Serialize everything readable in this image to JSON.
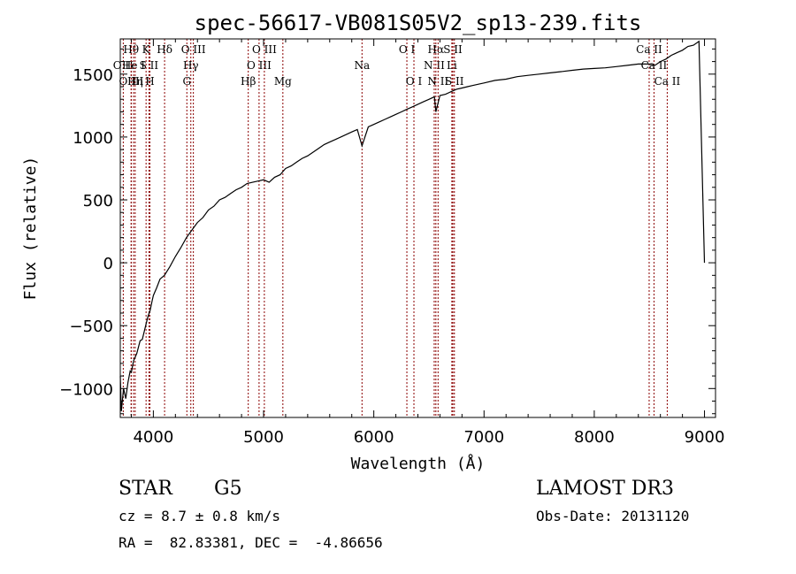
{
  "chart_data": {
    "type": "line",
    "title": "spec-56617-VB081S05V2_sp13-239.fits",
    "xlabel": "Wavelength (Å)",
    "ylabel": "Flux (relative)",
    "xlim": [
      3700,
      9100
    ],
    "ylim": [
      -1230,
      1780
    ],
    "xticks": [
      4000,
      5000,
      6000,
      7000,
      8000,
      9000
    ],
    "yticks": [
      -1000,
      -500,
      0,
      500,
      1000,
      1500
    ],
    "xtick_labels": [
      "4000",
      "5000",
      "6000",
      "7000",
      "8000",
      "9000"
    ],
    "ytick_labels": [
      "−1000",
      "−500",
      "0",
      "500",
      "1000",
      "1500"
    ],
    "grid": false,
    "series": [
      {
        "line_color": "#000000",
        "x": [
          3700,
          3710,
          3730,
          3750,
          3770,
          3790,
          3800,
          3820,
          3850,
          3880,
          3900,
          3930,
          3950,
          3970,
          3990,
          4000,
          4030,
          4060,
          4100,
          4150,
          4200,
          4250,
          4300,
          4350,
          4400,
          4450,
          4500,
          4550,
          4600,
          4650,
          4700,
          4750,
          4800,
          4850,
          4900,
          4950,
          5000,
          5050,
          5100,
          5150,
          5200,
          5250,
          5300,
          5350,
          5400,
          5450,
          5500,
          5550,
          5600,
          5650,
          5700,
          5750,
          5800,
          5850,
          5893,
          5950,
          6000,
          6050,
          6100,
          6150,
          6200,
          6250,
          6300,
          6350,
          6400,
          6450,
          6500,
          6550,
          6563,
          6600,
          6650,
          6700,
          6750,
          6800,
          6850,
          6900,
          6950,
          7000,
          7100,
          7200,
          7300,
          7400,
          7500,
          7600,
          7700,
          7800,
          7900,
          8000,
          8100,
          8200,
          8300,
          8400,
          8500,
          8550,
          8600,
          8650,
          8700,
          8750,
          8800,
          8850,
          8900,
          8950,
          9000
        ],
        "y": [
          -900,
          -1180,
          -1000,
          -1080,
          -950,
          -860,
          -870,
          -780,
          -720,
          -620,
          -610,
          -500,
          -430,
          -380,
          -300,
          -260,
          -200,
          -130,
          -100,
          -30,
          50,
          120,
          200,
          260,
          320,
          360,
          420,
          450,
          500,
          520,
          550,
          580,
          600,
          630,
          640,
          650,
          660,
          640,
          680,
          700,
          750,
          770,
          800,
          830,
          850,
          880,
          910,
          940,
          960,
          980,
          1000,
          1020,
          1040,
          1060,
          930,
          1080,
          1100,
          1120,
          1140,
          1160,
          1180,
          1200,
          1220,
          1240,
          1260,
          1280,
          1300,
          1320,
          1200,
          1330,
          1340,
          1360,
          1380,
          1390,
          1400,
          1410,
          1420,
          1430,
          1450,
          1460,
          1480,
          1490,
          1500,
          1510,
          1520,
          1530,
          1540,
          1545,
          1550,
          1560,
          1570,
          1580,
          1580,
          1570,
          1600,
          1620,
          1650,
          1670,
          1690,
          1720,
          1730,
          1760,
          0
        ]
      }
    ],
    "line_markers": [
      {
        "label": "O II",
        "x": 3727,
        "row": 1,
        "marker_color": "#8b0000"
      },
      {
        "label": "Hθ",
        "x": 3798,
        "row": 0,
        "marker_color": "#8b0000"
      },
      {
        "label": "O III",
        "x": 3800,
        "row": 2,
        "marker_color": "#8b0000"
      },
      {
        "label": "He I",
        "x": 3820,
        "row": 1,
        "marker_color": "#8b0000"
      },
      {
        "label": "Hη",
        "x": 3835,
        "row": 2,
        "marker_color": "#8b0000"
      },
      {
        "label": "K",
        "x": 3934,
        "row": 0,
        "marker_color": "#8b0000"
      },
      {
        "label": "S II",
        "x": 3960,
        "row": 1,
        "marker_color": "#8b0000"
      },
      {
        "label": "H",
        "x": 3969,
        "row": 2,
        "marker_color": "#8b0000"
      },
      {
        "label": "Hδ",
        "x": 4102,
        "row": 0,
        "marker_color": "#8b0000"
      },
      {
        "label": "O III",
        "x": 4363,
        "row": 0,
        "marker_color": "#8b0000"
      },
      {
        "label": "Hγ",
        "x": 4340,
        "row": 1,
        "marker_color": "#8b0000"
      },
      {
        "label": "G",
        "x": 4304,
        "row": 2,
        "marker_color": "#8b0000"
      },
      {
        "label": "Hβ",
        "x": 4861,
        "row": 2,
        "marker_color": "#8b0000"
      },
      {
        "label": "O III",
        "x": 4959,
        "row": 1,
        "marker_color": "#8b0000"
      },
      {
        "label": "O III",
        "x": 5007,
        "row": 0,
        "marker_color": "#8b0000"
      },
      {
        "label": "Mg",
        "x": 5175,
        "row": 2,
        "marker_color": "#8b0000"
      },
      {
        "label": "Na",
        "x": 5893,
        "row": 1,
        "marker_color": "#8b0000"
      },
      {
        "label": "O I",
        "x": 6300,
        "row": 0,
        "marker_color": "#8b0000"
      },
      {
        "label": "O I",
        "x": 6364,
        "row": 2,
        "marker_color": "#8b0000"
      },
      {
        "label": "N II",
        "x": 6548,
        "row": 1,
        "marker_color": "#8b0000"
      },
      {
        "label": "Hα",
        "x": 6563,
        "row": 0,
        "marker_color": "#8b0000"
      },
      {
        "label": "N II",
        "x": 6583,
        "row": 2,
        "marker_color": "#8b0000"
      },
      {
        "label": "Li",
        "x": 6708,
        "row": 1,
        "marker_color": "#8b0000"
      },
      {
        "label": "S II",
        "x": 6717,
        "row": 0,
        "marker_color": "#8b0000"
      },
      {
        "label": "S II",
        "x": 6731,
        "row": 2,
        "marker_color": "#8b0000"
      },
      {
        "label": "Ca II",
        "x": 8498,
        "row": 0,
        "marker_color": "#8b0000"
      },
      {
        "label": "Ca II",
        "x": 8542,
        "row": 1,
        "marker_color": "#8b0000"
      },
      {
        "label": "Ca II",
        "x": 8662,
        "row": 2,
        "marker_color": "#8b0000"
      }
    ]
  },
  "info": {
    "object_class": "STAR",
    "subclass": "G5",
    "survey": "LAMOST DR3",
    "cz": "cz = 8.7 ± 0.8 km/s",
    "obs_date": "Obs-Date: 20131120",
    "coords": "RA =  82.83381, DEC =  -4.86656"
  }
}
